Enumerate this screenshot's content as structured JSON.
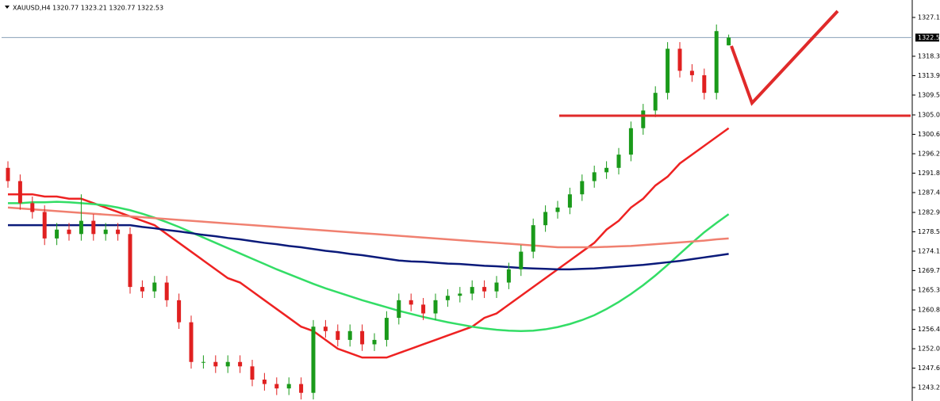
{
  "chart_data": {
    "type": "candlestick",
    "title": "XAUUSD,H4  1320.77 1323.21 1320.77 1322.53",
    "categories": [
      null,
      null,
      null,
      null,
      null,
      null,
      null,
      null,
      null,
      null,
      null,
      null,
      null,
      null,
      null,
      null,
      null,
      null,
      null,
      null,
      null,
      null,
      null,
      null,
      null,
      null,
      null,
      null,
      null,
      null,
      null,
      null,
      null,
      null,
      null,
      null,
      null,
      null,
      null,
      null,
      null,
      null,
      null,
      null,
      null,
      null,
      null,
      null,
      null,
      null,
      null,
      null,
      null,
      null,
      null,
      null,
      null,
      null,
      null,
      null
    ],
    "open": [
      1293,
      1290,
      1285,
      1283,
      1277,
      1279,
      1278,
      1281,
      1278,
      1279,
      1278,
      1266,
      1265,
      1267,
      1263,
      1258,
      1249,
      1249,
      1248,
      1249,
      1248,
      1245,
      1244,
      1243,
      1244,
      1242,
      1257,
      1256,
      1254,
      1256,
      1253,
      1254,
      1259,
      1263,
      1262,
      1260,
      1263,
      1264,
      1264.5,
      1266,
      1265,
      1267,
      1270,
      1274,
      1280,
      1283,
      1284,
      1287,
      1290,
      1292,
      1293,
      1296,
      1302,
      1306,
      1310,
      1320,
      1315,
      1314,
      1310,
      1320.77
    ],
    "high": [
      1294.5,
      1291.5,
      1286.5,
      1284.5,
      1280.5,
      1280.5,
      1287,
      1282.5,
      1280.5,
      1280.5,
      1279.5,
      1267.5,
      1268.5,
      1268.5,
      1264.5,
      1259.5,
      1250.5,
      1250.5,
      1250.5,
      1250.5,
      1249.5,
      1246.5,
      1245.5,
      1245.5,
      1245.5,
      1258.5,
      1258.5,
      1257.5,
      1257.5,
      1257.5,
      1255.5,
      1260.5,
      1264.5,
      1264.5,
      1263.5,
      1264.5,
      1265.5,
      1266,
      1267.5,
      1267.5,
      1268.5,
      1271.5,
      1275.5,
      1281.5,
      1284.5,
      1285.5,
      1288.5,
      1291.5,
      1293.5,
      1294.5,
      1297.5,
      1303.5,
      1307.5,
      1311.5,
      1321.5,
      1321.5,
      1316.5,
      1315.5,
      1325.5,
      1323.21
    ],
    "low": [
      1288.5,
      1283.5,
      1281.5,
      1275.5,
      1275.5,
      1276.5,
      1276.5,
      1276.5,
      1276.5,
      1276.5,
      1264.5,
      1263.5,
      1263.5,
      1261.5,
      1256.5,
      1247.5,
      1247.5,
      1246.5,
      1246.5,
      1246.5,
      1243.5,
      1242.5,
      1241.5,
      1241.5,
      1240.5,
      1240.5,
      1254.5,
      1252.5,
      1252.5,
      1251.5,
      1251.5,
      1252.5,
      1257.5,
      1260.5,
      1258.5,
      1258.5,
      1261.5,
      1262.5,
      1263,
      1263.5,
      1263.5,
      1265.5,
      1268.5,
      1272.5,
      1278.5,
      1281.5,
      1282.5,
      1285.5,
      1288.5,
      1290.5,
      1291.5,
      1294.5,
      1300.5,
      1304.5,
      1308.5,
      1313.5,
      1312.5,
      1308.5,
      1308.5,
      1320.77
    ],
    "close": [
      1290,
      1285,
      1283,
      1277,
      1279,
      1278,
      1281,
      1278,
      1279,
      1278,
      1266,
      1265,
      1267,
      1263,
      1258,
      1249,
      1249,
      1248,
      1249,
      1248,
      1245,
      1244,
      1243,
      1244,
      1242,
      1257,
      1256,
      1254,
      1256,
      1253,
      1254,
      1259,
      1263,
      1262,
      1260,
      1263,
      1264,
      1264.5,
      1266,
      1265,
      1267,
      1270,
      1274,
      1280,
      1283,
      1284,
      1287,
      1290,
      1292,
      1293,
      1296,
      1302,
      1306,
      1310,
      1320,
      1315,
      1314,
      1310,
      1324,
      1322.53
    ],
    "up_color": "#1a9a1a",
    "down_color": "#e02020",
    "series": [
      {
        "color": "#ee2222",
        "values": [
          1287,
          1287,
          1287,
          1286.5,
          1286.5,
          1286,
          1286,
          1285,
          1284,
          1283,
          1282,
          1281,
          1280,
          1278,
          1276,
          1274,
          1272,
          1270,
          1268,
          1267,
          1265,
          1263,
          1261,
          1259,
          1257,
          1256,
          1254,
          1252,
          1251,
          1250,
          1250,
          1250,
          1251,
          1252,
          1253,
          1254,
          1255,
          1256,
          1257,
          1259,
          1260,
          1262,
          1264,
          1266,
          1268,
          1270,
          1272,
          1274,
          1276,
          1279,
          1281,
          1284,
          1286,
          1289,
          1291,
          1294,
          1296,
          1298,
          1300,
          1302
        ]
      },
      {
        "color": "#33dd66",
        "values": [
          1285,
          1285,
          1285.2,
          1285.2,
          1285.3,
          1285.2,
          1285,
          1284.8,
          1284.5,
          1284,
          1283.4,
          1282.6,
          1281.7,
          1280.7,
          1279.6,
          1278.4,
          1277.2,
          1276,
          1274.8,
          1273.6,
          1272.4,
          1271.2,
          1270,
          1268.9,
          1267.8,
          1266.7,
          1265.7,
          1264.8,
          1263.9,
          1263,
          1262.2,
          1261.4,
          1260.6,
          1259.9,
          1259.2,
          1258.6,
          1258,
          1257.5,
          1257,
          1256.6,
          1256.3,
          1256.1,
          1256,
          1256.1,
          1256.4,
          1256.9,
          1257.6,
          1258.5,
          1259.6,
          1261,
          1262.6,
          1264.4,
          1266.4,
          1268.6,
          1271,
          1273.5,
          1276,
          1278.4,
          1280.5,
          1282.5
        ]
      },
      {
        "color": "#f08070",
        "values": [
          1284,
          1283.8,
          1283.6,
          1283.4,
          1283.2,
          1283,
          1282.8,
          1282.6,
          1282.4,
          1282.2,
          1282,
          1281.8,
          1281.6,
          1281.4,
          1281.2,
          1281,
          1280.8,
          1280.6,
          1280.4,
          1280.2,
          1280,
          1279.8,
          1279.6,
          1279.4,
          1279.2,
          1279,
          1278.8,
          1278.6,
          1278.4,
          1278.2,
          1278,
          1277.8,
          1277.6,
          1277.4,
          1277.2,
          1277,
          1276.8,
          1276.6,
          1276.4,
          1276.2,
          1276,
          1275.8,
          1275.6,
          1275.4,
          1275.2,
          1275,
          1275,
          1275,
          1275,
          1275.1,
          1275.2,
          1275.3,
          1275.5,
          1275.7,
          1275.9,
          1276.1,
          1276.3,
          1276.5,
          1276.8,
          1277
        ]
      },
      {
        "color": "#0a1a7a",
        "values": [
          1280,
          1280,
          1280,
          1280,
          1280,
          1280,
          1280,
          1280,
          1280,
          1280,
          1280,
          1279.6,
          1279.3,
          1278.9,
          1278.6,
          1278.2,
          1277.8,
          1277.5,
          1277.1,
          1276.8,
          1276.4,
          1276,
          1275.7,
          1275.3,
          1275,
          1274.6,
          1274.2,
          1273.9,
          1273.5,
          1273.2,
          1272.8,
          1272.4,
          1272,
          1271.8,
          1271.7,
          1271.5,
          1271.3,
          1271.2,
          1271,
          1270.8,
          1270.7,
          1270.5,
          1270.3,
          1270.2,
          1270.1,
          1270,
          1270,
          1270.1,
          1270.2,
          1270.4,
          1270.6,
          1270.8,
          1271,
          1271.3,
          1271.6,
          1271.9,
          1272.3,
          1272.7,
          1273.1,
          1273.5
        ]
      }
    ],
    "last_price": 1322.53,
    "ylim": [
      1240.15,
      1331.05
    ],
    "yticks": [
      {
        "value": 1327.1,
        "label": "1327.10"
      },
      {
        "value": 1318.3,
        "label": "1318.30"
      },
      {
        "value": 1313.9,
        "label": "1313.90"
      },
      {
        "value": 1309.5,
        "label": "1309.50"
      },
      {
        "value": 1305,
        "label": "1305.00"
      },
      {
        "value": 1300.6,
        "label": "1300.60"
      },
      {
        "value": 1296.2,
        "label": "1296.20"
      },
      {
        "value": 1291.8,
        "label": "1291.80"
      },
      {
        "value": 1287.4,
        "label": "1287.40"
      },
      {
        "value": 1282.9,
        "label": "1282.90"
      },
      {
        "value": 1278.5,
        "label": "1278.50"
      },
      {
        "value": 1274.1,
        "label": "1274.10"
      },
      {
        "value": 1269.7,
        "label": "1269.70"
      },
      {
        "value": 1265.3,
        "label": "1265.30"
      },
      {
        "value": 1260.8,
        "label": "1260.80"
      },
      {
        "value": 1256.4,
        "label": "1256.40"
      },
      {
        "value": 1252,
        "label": "1252.00"
      },
      {
        "value": 1247.6,
        "label": "1247.60"
      },
      {
        "value": 1243.2,
        "label": "1243.20"
      }
    ]
  }
}
